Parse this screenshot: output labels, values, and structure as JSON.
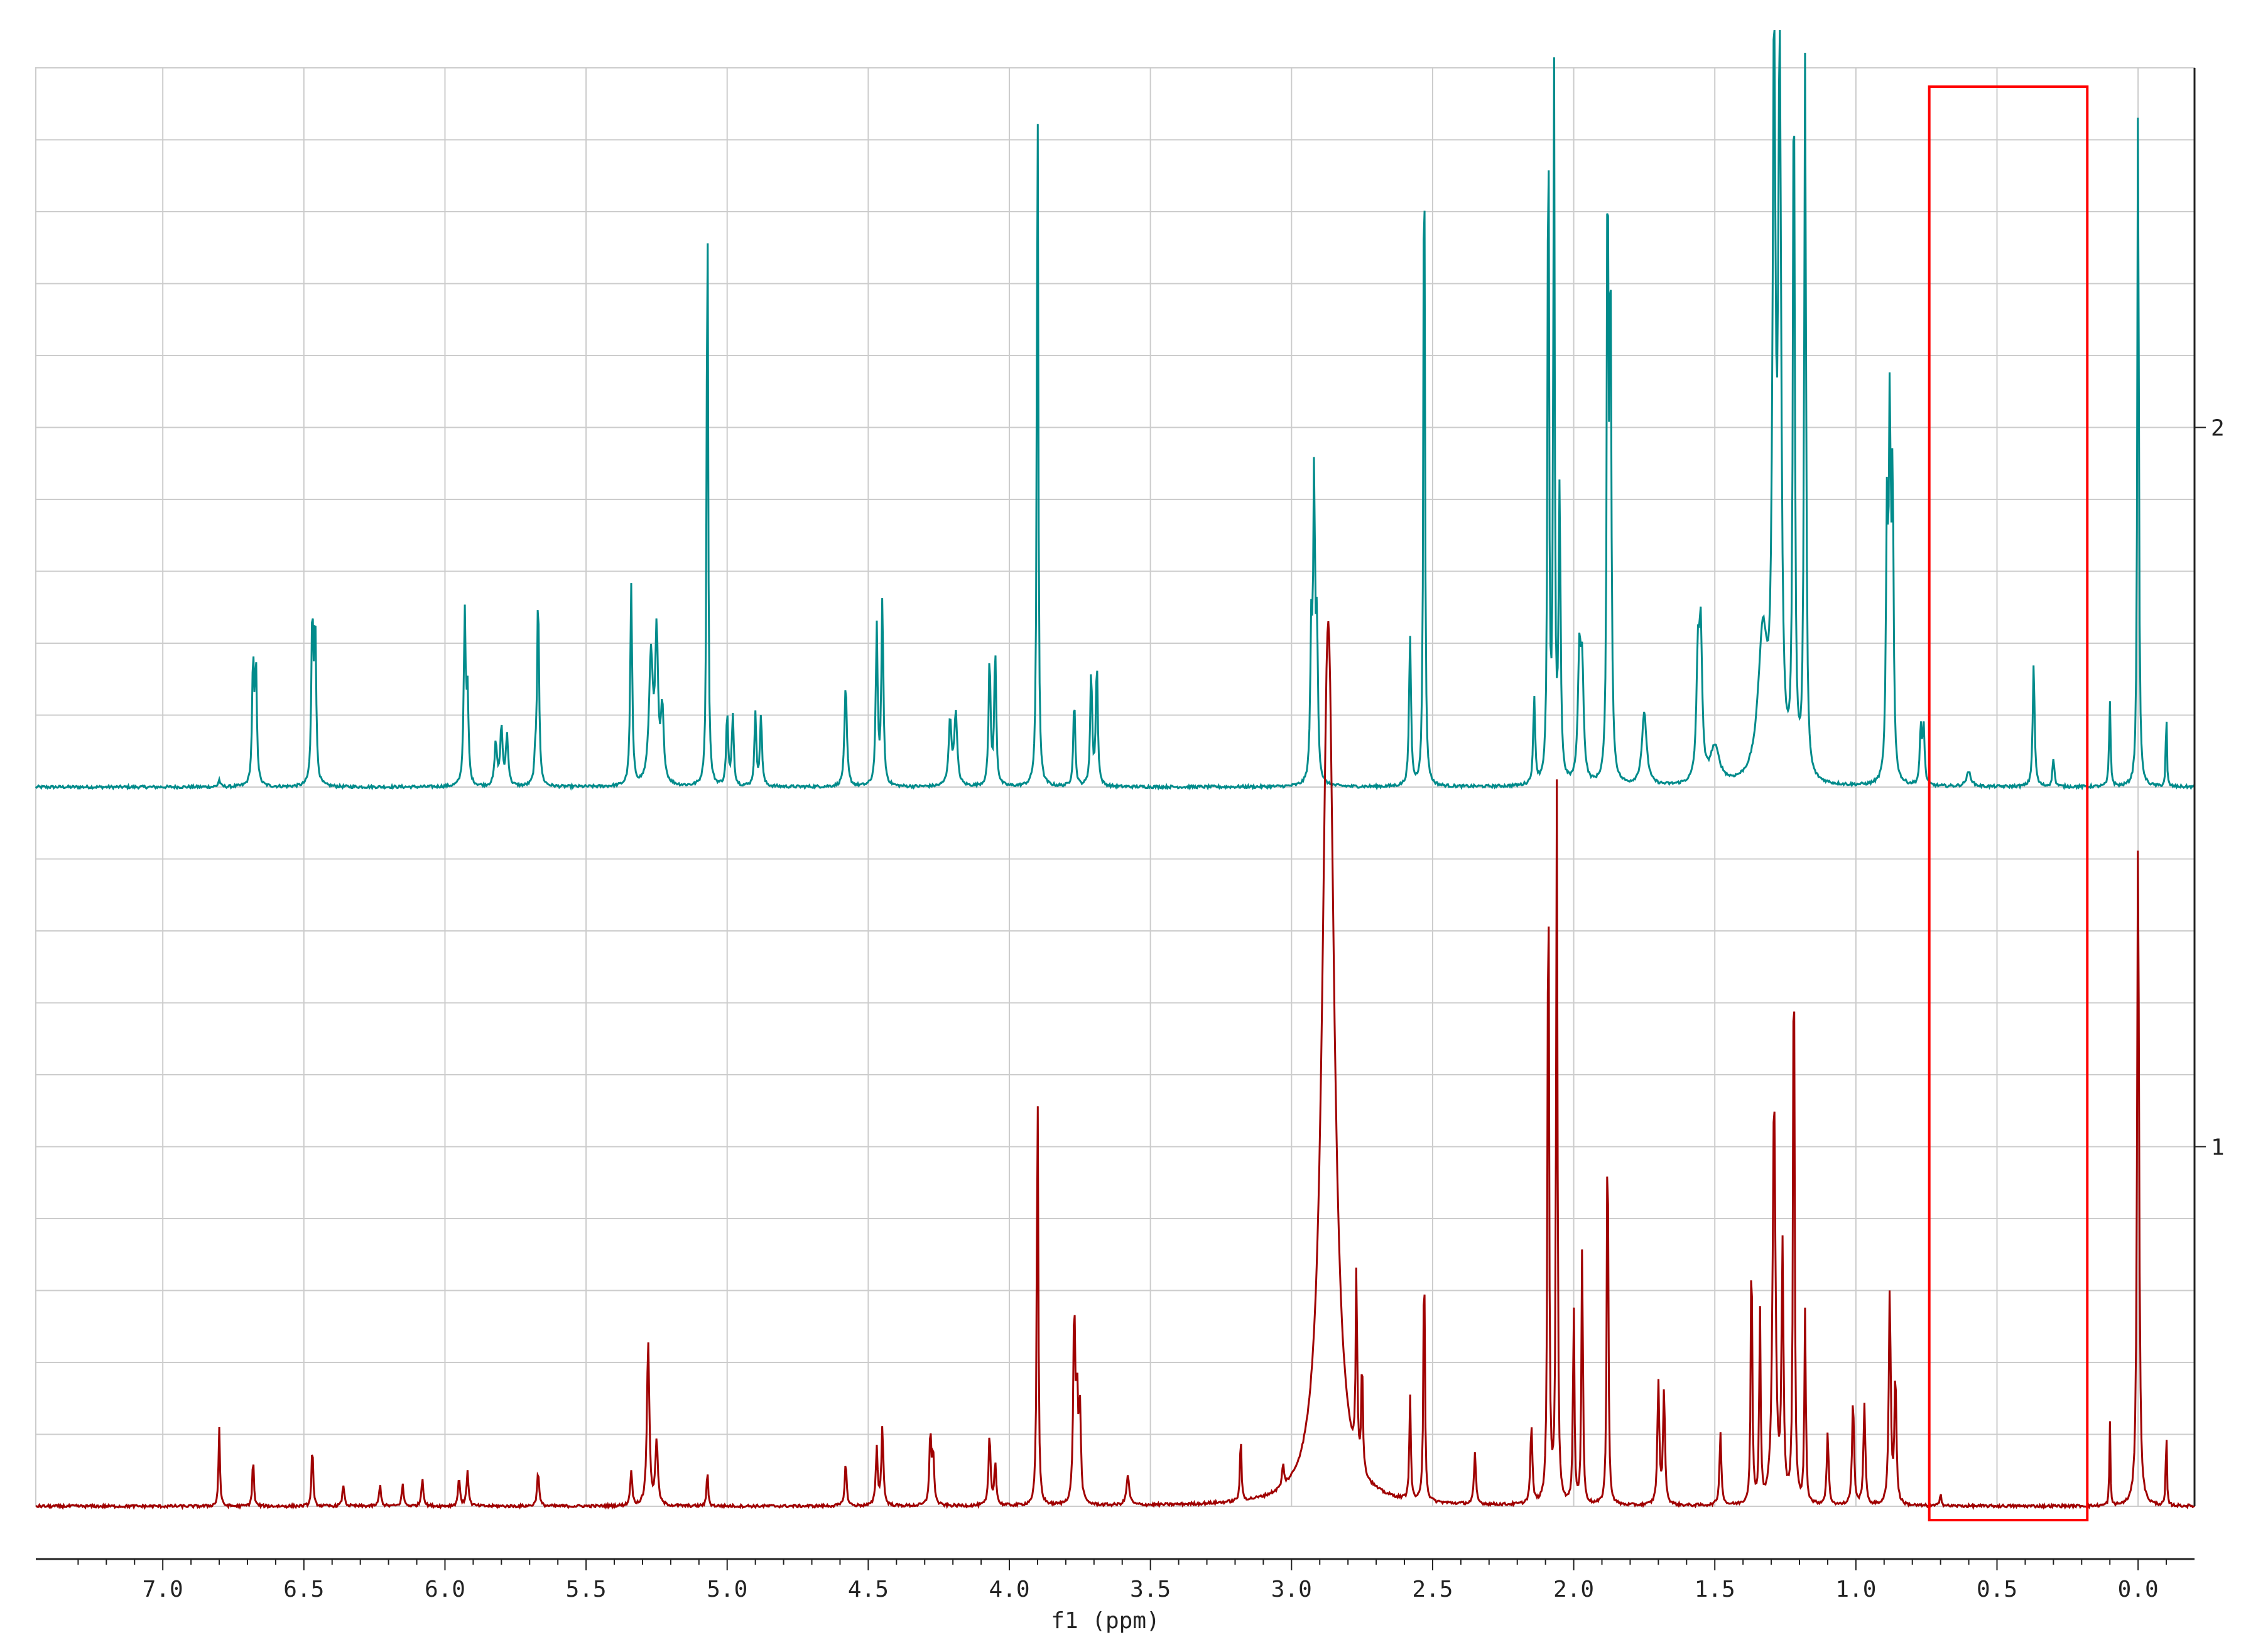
{
  "chart_data": {
    "type": "line",
    "title": "",
    "xlabel": "f1 (ppm)",
    "ylabel": "",
    "x_reversed": true,
    "xlim": [
      7.45,
      -0.2
    ],
    "ylim": [
      0.5,
      2.5
    ],
    "x_ticks": [
      7.0,
      6.5,
      6.0,
      5.5,
      5.0,
      4.5,
      4.0,
      3.5,
      3.0,
      2.5,
      2.0,
      1.5,
      1.0,
      0.5,
      0.0
    ],
    "x_tick_labels": [
      "7.0",
      "6.5",
      "6.0",
      "5.5",
      "5.0",
      "4.5",
      "4.0",
      "3.5",
      "3.0",
      "2.5",
      "2.0",
      "1.5",
      "1.0",
      "0.5",
      "0.0"
    ],
    "y_ticks": [
      2,
      1
    ],
    "y_tick_labels": [
      "2",
      "1"
    ],
    "grid": true,
    "stacked_offset_baselines": [
      2,
      1
    ],
    "colors": {
      "series_2": "#008b8b",
      "series_1": "#a00000",
      "highlight_box": "#ff0000",
      "grid": "#cccccc"
    },
    "highlight_region": {
      "x": [
        0.74,
        0.18
      ]
    },
    "series": [
      {
        "id": "2",
        "baseline": 1.5,
        "peaks": [
          [
            6.8,
            0.01,
            0.004
          ],
          [
            6.68,
            0.17,
            0.004
          ],
          [
            6.67,
            0.16,
            0.004
          ],
          [
            6.47,
            0.23,
            0.004
          ],
          [
            6.46,
            0.22,
            0.004
          ],
          [
            5.93,
            0.24,
            0.004
          ],
          [
            5.92,
            0.12,
            0.004
          ],
          [
            5.82,
            0.06,
            0.005
          ],
          [
            5.8,
            0.08,
            0.005
          ],
          [
            5.78,
            0.07,
            0.005
          ],
          [
            5.67,
            0.27,
            0.004
          ],
          [
            5.68,
            0.03,
            0.004
          ],
          [
            5.34,
            0.28,
            0.004
          ],
          [
            5.27,
            0.18,
            0.008
          ],
          [
            5.25,
            0.2,
            0.006
          ],
          [
            5.23,
            0.1,
            0.006
          ],
          [
            5.07,
            0.85,
            0.003
          ],
          [
            5.0,
            0.1,
            0.004
          ],
          [
            4.98,
            0.1,
            0.004
          ],
          [
            4.9,
            0.1,
            0.004
          ],
          [
            4.88,
            0.1,
            0.004
          ],
          [
            4.58,
            0.14,
            0.005
          ],
          [
            4.47,
            0.22,
            0.004
          ],
          [
            4.45,
            0.26,
            0.004
          ],
          [
            4.21,
            0.09,
            0.006
          ],
          [
            4.19,
            0.1,
            0.006
          ],
          [
            4.07,
            0.18,
            0.004
          ],
          [
            4.05,
            0.19,
            0.004
          ],
          [
            3.9,
            1.0,
            0.003
          ],
          [
            3.77,
            0.12,
            0.004
          ],
          [
            3.71,
            0.16,
            0.004
          ],
          [
            3.69,
            0.17,
            0.004
          ],
          [
            2.93,
            0.2,
            0.004
          ],
          [
            2.92,
            0.41,
            0.004
          ],
          [
            2.91,
            0.2,
            0.004
          ],
          [
            2.58,
            0.21,
            0.004
          ],
          [
            2.53,
            1.0,
            0.003
          ],
          [
            2.14,
            0.12,
            0.004
          ],
          [
            2.09,
            1.0,
            0.003
          ],
          [
            2.07,
            1.0,
            0.003
          ],
          [
            2.05,
            0.4,
            0.004
          ],
          [
            1.98,
            0.17,
            0.006
          ],
          [
            1.97,
            0.15,
            0.006
          ],
          [
            1.88,
            0.88,
            0.003
          ],
          [
            1.87,
            0.7,
            0.004
          ],
          [
            1.75,
            0.1,
            0.01
          ],
          [
            1.56,
            0.16,
            0.006
          ],
          [
            1.55,
            0.2,
            0.006
          ],
          [
            1.5,
            0.05,
            0.02
          ],
          [
            1.33,
            0.2,
            0.02
          ],
          [
            1.29,
            1.0,
            0.006
          ],
          [
            1.27,
            1.0,
            0.006
          ],
          [
            1.22,
            1.0,
            0.004
          ],
          [
            1.18,
            1.0,
            0.004
          ],
          [
            0.89,
            0.35,
            0.004
          ],
          [
            0.88,
            0.48,
            0.004
          ],
          [
            0.87,
            0.4,
            0.004
          ],
          [
            0.77,
            0.08,
            0.004
          ],
          [
            0.76,
            0.08,
            0.004
          ],
          [
            0.6,
            0.02,
            0.01
          ],
          [
            0.37,
            0.17,
            0.004
          ],
          [
            0.3,
            0.04,
            0.004
          ],
          [
            0.1,
            0.12,
            0.003
          ],
          [
            0.0,
            1.0,
            0.003
          ],
          [
            -0.1,
            0.12,
            0.002
          ]
        ]
      },
      {
        "id": "1",
        "baseline": 0.5,
        "peaks": [
          [
            6.8,
            0.11,
            0.003
          ],
          [
            6.68,
            0.07,
            0.003
          ],
          [
            6.47,
            0.09,
            0.003
          ],
          [
            6.36,
            0.03,
            0.004
          ],
          [
            6.23,
            0.03,
            0.004
          ],
          [
            6.15,
            0.03,
            0.004
          ],
          [
            6.08,
            0.04,
            0.004
          ],
          [
            5.95,
            0.04,
            0.004
          ],
          [
            5.92,
            0.05,
            0.004
          ],
          [
            5.67,
            0.05,
            0.004
          ],
          [
            5.34,
            0.05,
            0.004
          ],
          [
            5.28,
            0.23,
            0.005
          ],
          [
            5.25,
            0.09,
            0.005
          ],
          [
            5.07,
            0.05,
            0.003
          ],
          [
            4.58,
            0.06,
            0.004
          ],
          [
            4.47,
            0.08,
            0.004
          ],
          [
            4.45,
            0.11,
            0.004
          ],
          [
            4.28,
            0.1,
            0.004
          ],
          [
            4.27,
            0.07,
            0.004
          ],
          [
            4.07,
            0.1,
            0.004
          ],
          [
            4.05,
            0.06,
            0.004
          ],
          [
            3.9,
            0.6,
            0.003
          ],
          [
            3.77,
            0.27,
            0.004
          ],
          [
            3.76,
            0.14,
            0.004
          ],
          [
            3.75,
            0.13,
            0.004
          ],
          [
            3.58,
            0.04,
            0.006
          ],
          [
            3.18,
            0.09,
            0.003
          ],
          [
            3.03,
            0.03,
            0.004
          ],
          [
            2.87,
            1.23,
            0.025
          ],
          [
            2.77,
            0.27,
            0.003
          ],
          [
            2.75,
            0.16,
            0.003
          ],
          [
            2.58,
            0.15,
            0.003
          ],
          [
            2.53,
            0.36,
            0.003
          ],
          [
            2.35,
            0.07,
            0.004
          ],
          [
            2.15,
            0.11,
            0.004
          ],
          [
            2.09,
            0.96,
            0.003
          ],
          [
            2.06,
            1.0,
            0.003
          ],
          [
            2.0,
            0.28,
            0.003
          ],
          [
            1.97,
            0.37,
            0.003
          ],
          [
            1.88,
            0.56,
            0.003
          ],
          [
            1.7,
            0.17,
            0.004
          ],
          [
            1.68,
            0.16,
            0.004
          ],
          [
            1.48,
            0.1,
            0.004
          ],
          [
            1.37,
            0.38,
            0.003
          ],
          [
            1.34,
            0.27,
            0.003
          ],
          [
            1.29,
            0.57,
            0.006
          ],
          [
            1.26,
            0.35,
            0.004
          ],
          [
            1.22,
            0.86,
            0.003
          ],
          [
            1.18,
            0.27,
            0.003
          ],
          [
            1.1,
            0.1,
            0.004
          ],
          [
            1.01,
            0.15,
            0.004
          ],
          [
            0.97,
            0.14,
            0.004
          ],
          [
            0.88,
            0.3,
            0.004
          ],
          [
            0.86,
            0.18,
            0.004
          ],
          [
            0.7,
            0.02,
            0.003
          ],
          [
            0.1,
            0.12,
            0.002
          ],
          [
            0.0,
            0.95,
            0.004
          ],
          [
            -0.1,
            0.12,
            0.002
          ]
        ]
      }
    ]
  }
}
